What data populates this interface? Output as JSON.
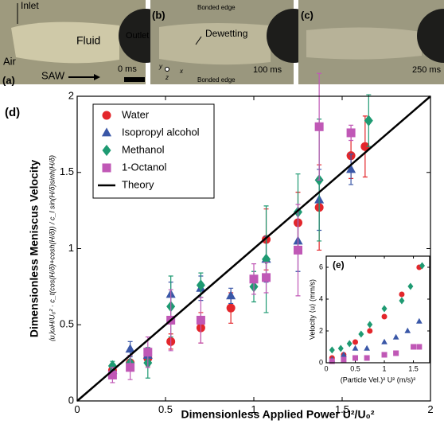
{
  "panels": [
    {
      "label": "(a)",
      "texts": [
        "Inlet",
        "Fluid",
        "Outlet",
        "Air",
        "SAW",
        "0 ms"
      ]
    },
    {
      "label": "(b)",
      "texts": [
        "Bonded edge",
        "Dewetting",
        "100 ms",
        "Bonded edge",
        "y",
        "x",
        "z"
      ]
    },
    {
      "label": "(c)",
      "texts": [
        "250 ms"
      ]
    }
  ],
  "chart_data": [
    {
      "type": "scatter",
      "panel_label": "(d)",
      "xlabel": "Dimensionless Applied Power U²/U₀²",
      "ylabel": "Dimensionless Meniscus Velocity",
      "ylabel_formula": "⟨u⟩ωH/U₀² · c_t(cos(H/δ)+cosh(H/δ)) / c_l sin(H/δ)sinh(H/δ)",
      "xlim": [
        0,
        2
      ],
      "ylim": [
        0,
        2
      ],
      "xticks": [
        0,
        0.5,
        1,
        1.5,
        2
      ],
      "yticks": [
        0,
        0.5,
        1,
        1.5,
        2
      ],
      "legend": "top-left",
      "series": [
        {
          "name": "Water",
          "color": "#e3262b",
          "marker": "circle",
          "x": [
            0.2,
            0.3,
            0.4,
            0.53,
            0.7,
            0.87,
            1.07,
            1.25,
            1.37,
            1.55,
            1.63
          ],
          "values": [
            0.2,
            0.25,
            0.28,
            0.39,
            0.48,
            0.61,
            1.06,
            1.17,
            1.27,
            1.61,
            1.67
          ],
          "errors": [
            0.03,
            0.05,
            0.05,
            0.05,
            0.1,
            0.1,
            0.2,
            0.2,
            0.28,
            0.15,
            0.2
          ]
        },
        {
          "name": "Isopropyl alcohol",
          "color": "#3a57a7",
          "marker": "triangle",
          "x": [
            0.2,
            0.3,
            0.4,
            0.53,
            0.7,
            0.87,
            1.07,
            1.25,
            1.37,
            1.55
          ],
          "values": [
            0.2,
            0.34,
            0.3,
            0.7,
            0.74,
            0.69,
            0.93,
            1.05,
            1.32,
            1.52
          ],
          "errors": [
            0.03,
            0.05,
            0.05,
            0.08,
            0.08,
            0.05,
            0.15,
            0.2,
            0.2,
            0.1
          ]
        },
        {
          "name": "Methanol",
          "color": "#1e9a72",
          "marker": "diamond",
          "x": [
            0.2,
            0.3,
            0.4,
            0.53,
            0.7,
            1.0,
            1.07,
            1.25,
            1.37,
            1.65
          ],
          "values": [
            0.23,
            0.25,
            0.25,
            0.62,
            0.76,
            0.75,
            0.93,
            1.24,
            1.45,
            1.84
          ],
          "errors": [
            0.03,
            0.05,
            0.1,
            0.2,
            0.08,
            0.1,
            0.35,
            0.25,
            0.4,
            0.17
          ]
        },
        {
          "name": "1-Octanol",
          "color": "#c058b6",
          "marker": "square",
          "x": [
            0.2,
            0.3,
            0.4,
            0.53,
            0.7,
            1.0,
            1.07,
            1.25,
            1.37,
            1.55
          ],
          "values": [
            0.17,
            0.22,
            0.32,
            0.53,
            0.53,
            0.8,
            0.81,
            0.99,
            1.8,
            1.76
          ],
          "errors": [
            0.05,
            0.08,
            0.1,
            0.2,
            0.15,
            0.1,
            0.1,
            0.3,
            0.35,
            0.05
          ]
        },
        {
          "name": "Theory",
          "color": "#000000",
          "marker": "line",
          "x": [
            0,
            2
          ],
          "values": [
            0,
            2
          ]
        }
      ]
    },
    {
      "type": "scatter",
      "panel_label": "(e)",
      "xlabel": "(Particle Vel.)² U² (m/s)²",
      "ylabel": "Velocity ⟨u⟩ (mm/s)",
      "xlim": [
        0,
        1.78
      ],
      "ylim": [
        0,
        6.7
      ],
      "xticks": [
        0,
        0.5,
        1,
        1.5
      ],
      "yticks": [
        0,
        2,
        4,
        6
      ],
      "series": [
        {
          "color": "#e3262b",
          "marker": "circle",
          "x": [
            0.1,
            0.3,
            0.5,
            0.75,
            1.0,
            1.3,
            1.6
          ],
          "values": [
            0.3,
            0.5,
            1.3,
            2,
            2.9,
            4.3,
            6.0
          ]
        },
        {
          "color": "#1e9a72",
          "marker": "diamond",
          "x": [
            0.1,
            0.25,
            0.4,
            0.6,
            0.75,
            1.0,
            1.3,
            1.45,
            1.65
          ],
          "values": [
            0.8,
            0.9,
            1.2,
            1.8,
            2.4,
            3.4,
            3.9,
            4.8,
            6.1
          ]
        },
        {
          "color": "#3a57a7",
          "marker": "triangle",
          "x": [
            0.1,
            0.3,
            0.5,
            0.7,
            1.0,
            1.2,
            1.4,
            1.6
          ],
          "values": [
            0.2,
            0.5,
            0.9,
            0.9,
            1.3,
            1.6,
            2.0,
            2.6
          ]
        },
        {
          "color": "#c058b6",
          "marker": "square",
          "x": [
            0.1,
            0.3,
            0.5,
            0.7,
            1.0,
            1.2,
            1.5,
            1.6
          ],
          "values": [
            0.1,
            0.2,
            0.3,
            0.3,
            0.5,
            0.6,
            1.0,
            1.0
          ]
        }
      ]
    }
  ]
}
